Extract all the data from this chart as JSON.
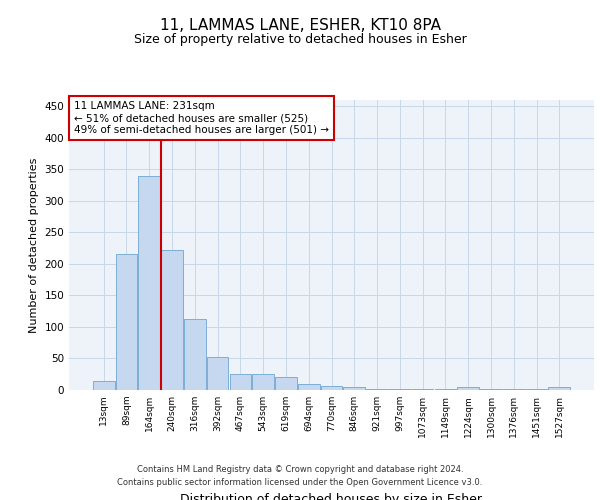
{
  "title1": "11, LAMMAS LANE, ESHER, KT10 8PA",
  "title2": "Size of property relative to detached houses in Esher",
  "xlabel": "Distribution of detached houses by size in Esher",
  "ylabel": "Number of detached properties",
  "categories": [
    "13sqm",
    "89sqm",
    "164sqm",
    "240sqm",
    "316sqm",
    "392sqm",
    "467sqm",
    "543sqm",
    "619sqm",
    "694sqm",
    "770sqm",
    "846sqm",
    "921sqm",
    "997sqm",
    "1073sqm",
    "1149sqm",
    "1224sqm",
    "1300sqm",
    "1376sqm",
    "1451sqm",
    "1527sqm"
  ],
  "values": [
    15,
    215,
    340,
    222,
    112,
    52,
    25,
    25,
    20,
    10,
    6,
    4,
    1,
    1,
    1,
    1,
    4,
    1,
    1,
    1,
    4
  ],
  "bar_color": "#c5d8f0",
  "bar_edge_color": "#7bafd4",
  "vline_color": "#cc0000",
  "annotation_line1": "11 LAMMAS LANE: 231sqm",
  "annotation_line2": "← 51% of detached houses are smaller (525)",
  "annotation_line3": "49% of semi-detached houses are larger (501) →",
  "annotation_box_color": "#cc0000",
  "footer1": "Contains HM Land Registry data © Crown copyright and database right 2024.",
  "footer2": "Contains public sector information licensed under the Open Government Licence v3.0.",
  "ylim": [
    0,
    460
  ],
  "yticks": [
    0,
    50,
    100,
    150,
    200,
    250,
    300,
    350,
    400,
    450
  ],
  "bg_color": "#eef3fa",
  "plot_bg": "#ffffff",
  "grid_color": "#c8d8e8",
  "title1_fontsize": 11,
  "title2_fontsize": 9,
  "ylabel_fontsize": 8,
  "xlabel_fontsize": 9,
  "tick_fontsize": 6.5,
  "ytick_fontsize": 7.5,
  "footer_fontsize": 6,
  "ann_fontsize": 7.5
}
